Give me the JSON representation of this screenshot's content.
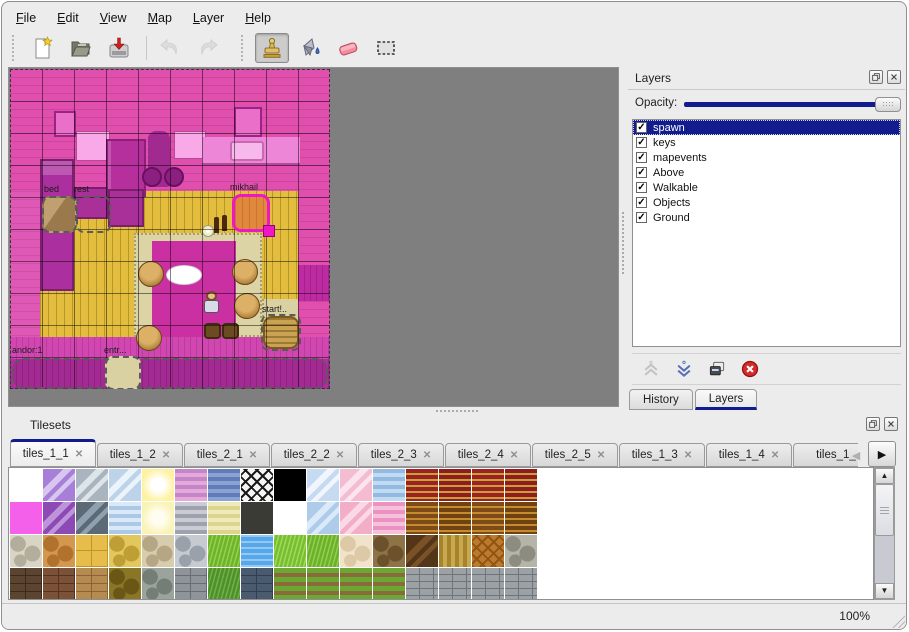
{
  "window": {
    "status_zoom": "100%"
  },
  "colors": {
    "highlight": "#121c8c",
    "map_wall_tint": "#e14fae",
    "map_floor": "#e2bd3e",
    "canvas_background": "#7f7f7f",
    "selected_object": "#ef16c6"
  },
  "menu": {
    "items": [
      "File",
      "Edit",
      "View",
      "Map",
      "Layer",
      "Help"
    ]
  },
  "toolbar": {
    "groups": [
      [
        {
          "name": "new-map"
        },
        {
          "name": "open"
        },
        {
          "name": "save"
        },
        {
          "sep": true
        },
        {
          "name": "undo",
          "disabled": true
        },
        {
          "name": "redo",
          "disabled": true
        }
      ],
      [
        {
          "name": "stamp-brush",
          "active": true
        },
        {
          "name": "bucket-fill"
        },
        {
          "name": "eraser"
        },
        {
          "name": "rectangular-select"
        }
      ]
    ]
  },
  "map": {
    "object_labels": [
      "bed",
      "rest",
      "mikhail",
      "start!..",
      "entr...",
      "andor:1"
    ]
  },
  "layers_panel": {
    "title": "Layers",
    "opacity_label": "Opacity:",
    "opacity_value": 100,
    "layers": [
      {
        "name": "spawn",
        "checked": true,
        "selected": true
      },
      {
        "name": "keys",
        "checked": true
      },
      {
        "name": "mapevents",
        "checked": true
      },
      {
        "name": "Above",
        "checked": true
      },
      {
        "name": "Walkable",
        "checked": true
      },
      {
        "name": "Objects",
        "checked": true
      },
      {
        "name": "Ground",
        "checked": true
      }
    ],
    "buttons": [
      {
        "name": "raise-layer",
        "disabled": true
      },
      {
        "name": "lower-layer"
      },
      {
        "name": "duplicate-layer"
      },
      {
        "name": "delete-layer"
      }
    ]
  },
  "dock_tabs": [
    {
      "label": "History",
      "active": false
    },
    {
      "label": "Layers",
      "active": true
    }
  ],
  "tilesets_panel": {
    "title": "Tilesets",
    "tabs": [
      {
        "label": "tiles_1_1",
        "active": true,
        "closable": true
      },
      {
        "label": "tiles_1_2",
        "active": false,
        "closable": true
      },
      {
        "label": "tiles_2_1",
        "active": false,
        "closable": true
      },
      {
        "label": "tiles_2_2",
        "active": false,
        "closable": true
      },
      {
        "label": "tiles_2_3",
        "active": false,
        "closable": true
      },
      {
        "label": "tiles_2_4",
        "active": false,
        "closable": true
      },
      {
        "label": "tiles_2_5",
        "active": false,
        "closable": true
      },
      {
        "label": "tiles_1_3",
        "active": false,
        "closable": true
      },
      {
        "label": "tiles_1_4",
        "active": false,
        "closable": true
      },
      {
        "label": "tiles_1_",
        "active": false,
        "closable": false
      }
    ],
    "tiles": [
      {
        "b": "#ffffff"
      },
      {
        "b": "#a77fd9",
        "f": "#d6c6f0",
        "p": "diag"
      },
      {
        "b": "#a9b4bf",
        "f": "#dde4ea",
        "p": "diag"
      },
      {
        "b": "#bcd3ea",
        "f": "#ecf4fb",
        "p": "diag"
      },
      {
        "b": "#fdf2a0",
        "f": "#ffffff",
        "p": "glow"
      },
      {
        "b": "#e6a8d8",
        "f": "#c287c9",
        "p": "hstripes"
      },
      {
        "b": "#8aa3d3",
        "f": "#5f7cb8",
        "p": "hstripes"
      },
      {
        "b": "#f4f4f4",
        "f": "#1a1a1a",
        "p": "lattice"
      },
      {
        "b": "#000000"
      },
      {
        "b": "#c6daf1",
        "f": "#f0f6fc",
        "p": "diag"
      },
      {
        "b": "#f3bcd0",
        "f": "#fbe4ed",
        "p": "diag"
      },
      {
        "b": "#c3daf3",
        "f": "#93bbe2",
        "p": "hstripes"
      },
      {
        "b": "#9c2222",
        "f": "#c89f3a",
        "p": "curtain"
      },
      {
        "b": "#8f1d1d",
        "f": "#c89f3a",
        "p": "curtain"
      },
      {
        "b": "#9c2222",
        "f": "#c89f3a",
        "p": "curtain"
      },
      {
        "b": "#8f1d1d",
        "f": "#c89f3a",
        "p": "curtain"
      },
      {
        "b": "#f560ea"
      },
      {
        "b": "#8d49b4",
        "f": "#bd93da",
        "p": "diag"
      },
      {
        "b": "#5c6a78",
        "f": "#8fa0af",
        "p": "diag"
      },
      {
        "b": "#abc9e7",
        "f": "#d9e9f7",
        "p": "hstripes"
      },
      {
        "b": "#faf3b8",
        "f": "#fffdef",
        "p": "glow"
      },
      {
        "b": "#9fa2ad",
        "f": "#c9ccd5",
        "p": "hstripes"
      },
      {
        "b": "#ddd58d",
        "f": "#efeabb",
        "p": "hstripes"
      },
      {
        "b": "#3b3b35"
      },
      {
        "b": "#ffffff"
      },
      {
        "b": "#aecbe9",
        "f": "#daeaf8",
        "p": "diag"
      },
      {
        "b": "#f3aec7",
        "f": "#fbd8e6",
        "p": "diag"
      },
      {
        "b": "#f6c2db",
        "f": "#ec92c2",
        "p": "hstripes"
      },
      {
        "b": "#7c4b17",
        "f": "#c78a2f",
        "p": "curtain"
      },
      {
        "b": "#6f4212",
        "f": "#c78a2f",
        "p": "curtain"
      },
      {
        "b": "#7c4b17",
        "f": "#c78a2f",
        "p": "curtain"
      },
      {
        "b": "#6f4212",
        "f": "#c78a2f",
        "p": "curtain"
      },
      {
        "b": "#d9d5c6",
        "f": "#b3ad9c",
        "p": "stones"
      },
      {
        "b": "#d4974f",
        "f": "#b0722c",
        "p": "stones"
      },
      {
        "b": "#e6bd4c",
        "f": "#c2951f",
        "p": "tiles"
      },
      {
        "b": "#e2c75c",
        "f": "#bf9f35",
        "p": "stones"
      },
      {
        "b": "#d7ccae",
        "f": "#b5a784",
        "p": "stones"
      },
      {
        "b": "#c6cbd1",
        "f": "#99a1ab",
        "p": "stones"
      },
      {
        "b": "#6fb32a",
        "f": "#92d14e",
        "p": "grass"
      },
      {
        "b": "#57a7e9",
        "f": "#90c9f6",
        "p": "water"
      },
      {
        "b": "#79bd33",
        "f": "#9bdb55",
        "p": "grass"
      },
      {
        "b": "#6cb02b",
        "f": "#8ecf4b",
        "p": "grass"
      },
      {
        "b": "#f1e3ca",
        "f": "#ddc9a6",
        "p": "stones"
      },
      {
        "b": "#8e7346",
        "f": "#6b512c",
        "p": "stones"
      },
      {
        "b": "#53351a",
        "f": "#7a5226",
        "p": "diag"
      },
      {
        "b": "#c9a950",
        "f": "#a5842c",
        "p": "vstripes"
      },
      {
        "b": "#bd7a2e",
        "f": "#8f5512",
        "p": "lattice"
      },
      {
        "b": "#b4b4a8",
        "f": "#8c8c80",
        "p": "stones"
      },
      {
        "b": "#5c4530",
        "f": "#3c2a1a",
        "p": "bricks"
      },
      {
        "b": "#7b5138",
        "f": "#553322",
        "p": "bricks"
      },
      {
        "b": "#b68b52",
        "f": "#8a6234",
        "p": "bricks"
      },
      {
        "b": "#8b7527",
        "f": "#6a5716",
        "p": "stones"
      },
      {
        "b": "#9aa39c",
        "f": "#747d76",
        "p": "stones"
      },
      {
        "b": "#8e9499",
        "f": "#676d72",
        "p": "bricks"
      },
      {
        "b": "#4f902b",
        "f": "#6fb048",
        "p": "grass"
      },
      {
        "b": "#4b5b6f",
        "f": "#333f4e",
        "p": "bricks"
      },
      {
        "b": "#6ba833",
        "f": "#8a693a",
        "p": "grassrows"
      },
      {
        "b": "#6ba833",
        "f": "#8a693a",
        "p": "grassrows"
      },
      {
        "b": "#6ba833",
        "f": "#8a693a",
        "p": "grassrows"
      },
      {
        "b": "#6ba833",
        "f": "#8a693a",
        "p": "grassrows"
      },
      {
        "b": "#9ba1a5",
        "f": "#6e7478",
        "p": "planks"
      },
      {
        "b": "#9ba1a5",
        "f": "#6e7478",
        "p": "planks"
      },
      {
        "b": "#9ba1a5",
        "f": "#6e7478",
        "p": "planks"
      },
      {
        "b": "#9ba1a5",
        "f": "#6e7478",
        "p": "planks"
      }
    ]
  }
}
